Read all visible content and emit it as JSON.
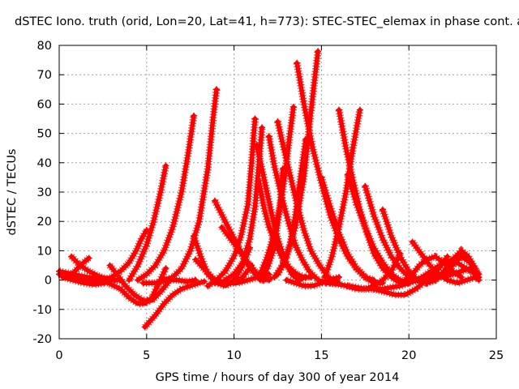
{
  "chart_data": {
    "type": "scatter",
    "title": "dSTEC Iono. truth (orid, Lon=20, Lat=41, h=773): STEC-STEC_elemax in phase cont. a",
    "xlabel": "GPS time / hours of day 300 of year 2014",
    "ylabel": "dSTEC  / TECUs",
    "xlim": [
      0,
      25
    ],
    "ylim": [
      -20,
      80
    ],
    "xticks": [
      "0",
      "5",
      "10",
      "15",
      "20",
      "25"
    ],
    "yticks": [
      "-20",
      "-10",
      "0",
      "10",
      "20",
      "30",
      "40",
      "50",
      "60",
      "70",
      "80"
    ],
    "grid": true,
    "color": "#ff0000",
    "marker": "plus",
    "series": [
      {
        "x": [
          0.0,
          0.5,
          1.0,
          1.5,
          2.0,
          2.5,
          3.0,
          3.5,
          4.0,
          4.4,
          4.7,
          5.0
        ],
        "y": [
          2,
          1,
          0.5,
          0,
          -0.5,
          0,
          1,
          3,
          6,
          10,
          14,
          17
        ]
      },
      {
        "x": [
          0.0,
          0.4,
          0.8,
          1.2,
          1.6,
          2.0,
          2.4,
          2.8,
          3.2
        ],
        "y": [
          3,
          2.5,
          2,
          1.5,
          1,
          0.8,
          0.5,
          0.3,
          0
        ]
      },
      {
        "x": [
          0.7,
          1.2,
          1.7,
          2.2,
          2.7,
          3.1,
          3.5
        ],
        "y": [
          8,
          5,
          3,
          1.5,
          0.5,
          0,
          0
        ]
      },
      {
        "x": [
          0.5,
          0.9,
          1.2,
          1.5,
          1.7
        ],
        "y": [
          1,
          3,
          5,
          6.5,
          7.5
        ]
      },
      {
        "x": [
          0.2,
          0.8,
          1.4,
          2.0,
          2.6,
          3.0
        ],
        "y": [
          1,
          0,
          -1,
          -1.5,
          -1,
          0
        ]
      },
      {
        "x": [
          2.9,
          3.3,
          3.8,
          4.3,
          4.8,
          5.3,
          5.8,
          6.2
        ],
        "y": [
          5,
          2,
          -2,
          -5,
          -7,
          -7,
          -4,
          -1
        ]
      },
      {
        "x": [
          2.0,
          2.8,
          3.5,
          4.0,
          4.5,
          4.9,
          5.3,
          5.7,
          6.1
        ],
        "y": [
          0,
          -1,
          -3,
          -6,
          -8,
          -8,
          -6,
          -1,
          4
        ]
      },
      {
        "x": [
          4.9,
          5.5,
          6.0,
          6.5,
          7.0,
          7.5,
          8.0,
          8.3
        ],
        "y": [
          -16,
          -12,
          -8,
          -5,
          -3,
          -2,
          -1,
          -0.5
        ]
      },
      {
        "x": [
          4.0,
          4.5,
          5.0,
          5.4,
          5.8,
          6.1
        ],
        "y": [
          0,
          5,
          12,
          20,
          30,
          39
        ]
      },
      {
        "x": [
          4.5,
          5.0,
          5.5,
          6.0,
          6.5,
          7.0,
          7.4,
          7.7
        ],
        "y": [
          0,
          2,
          5,
          10,
          18,
          30,
          44,
          56
        ]
      },
      {
        "x": [
          6.0,
          6.5,
          7.0,
          7.5,
          8.0,
          8.5,
          8.8,
          9.0
        ],
        "y": [
          0,
          1,
          4,
          10,
          20,
          38,
          55,
          65
        ]
      },
      {
        "x": [
          4.8,
          5.5,
          6.2,
          6.8,
          7.3,
          7.8
        ],
        "y": [
          -1,
          -1,
          0,
          0,
          -0.5,
          0
        ]
      },
      {
        "x": [
          7.7,
          8.1,
          8.5,
          9.0,
          9.5,
          10.0,
          10.5,
          10.9
        ],
        "y": [
          15,
          8,
          2,
          -1,
          -2,
          0,
          5,
          11
        ]
      },
      {
        "x": [
          7.8,
          8.4,
          8.9,
          9.4,
          9.9,
          10.5,
          11.0
        ],
        "y": [
          7,
          3,
          0,
          -1.5,
          -1,
          1,
          5
        ]
      },
      {
        "x": [
          8.9,
          9.5,
          10.1,
          10.7,
          11.2,
          11.7,
          12.1
        ],
        "y": [
          27,
          20,
          13,
          6,
          2,
          0,
          0.5
        ]
      },
      {
        "x": [
          9.3,
          9.8,
          10.3,
          10.8,
          11.2,
          11.6,
          12.0
        ],
        "y": [
          18,
          14,
          10,
          6,
          3,
          1,
          0
        ]
      },
      {
        "x": [
          8.5,
          9.0,
          9.5,
          10.0,
          10.4,
          10.8,
          11.0,
          11.2
        ],
        "y": [
          -2,
          0,
          3,
          8,
          15,
          26,
          40,
          55
        ]
      },
      {
        "x": [
          9.5,
          10.0,
          10.5,
          10.9,
          11.2,
          11.4,
          11.6
        ],
        "y": [
          0,
          2,
          6,
          14,
          25,
          38,
          52
        ]
      },
      {
        "x": [
          11.3,
          11.7,
          12.1,
          12.5,
          12.9,
          13.3,
          13.7,
          14.1
        ],
        "y": [
          46,
          35,
          24,
          14,
          7,
          2,
          0,
          1
        ]
      },
      {
        "x": [
          11.4,
          11.7,
          12.0,
          12.4,
          12.8,
          13.2,
          13.6,
          14.0,
          14.4
        ],
        "y": [
          34,
          25,
          18,
          12,
          7,
          4,
          2,
          1,
          1
        ]
      },
      {
        "x": [
          12.0,
          12.3,
          12.7,
          13.1,
          13.5,
          13.9,
          14.3,
          14.8,
          15.3,
          15.8
        ],
        "y": [
          49,
          39,
          29,
          20,
          12,
          7,
          3,
          0,
          -1,
          -1
        ]
      },
      {
        "x": [
          12.5,
          12.8,
          13.2,
          13.6,
          14.0,
          14.4,
          14.9,
          15.4,
          16.0
        ],
        "y": [
          54,
          46,
          36,
          26,
          17,
          10,
          5,
          1,
          -1
        ]
      },
      {
        "x": [
          11.5,
          11.9,
          12.3,
          12.7,
          13.0,
          13.2,
          13.4
        ],
        "y": [
          2,
          8,
          16,
          27,
          40,
          50,
          59
        ]
      },
      {
        "x": [
          11.5,
          11.9,
          12.3,
          12.6,
          12.8
        ],
        "y": [
          0,
          4,
          11,
          24,
          38
        ]
      },
      {
        "x": [
          12.3,
          12.8,
          13.2,
          13.5,
          13.8,
          14.1
        ],
        "y": [
          1,
          5,
          12,
          22,
          35,
          48
        ]
      },
      {
        "x": [
          13.6,
          14.0,
          14.5,
          15.0,
          15.5,
          16.0,
          16.5,
          17.0,
          17.5,
          18.0
        ],
        "y": [
          74,
          60,
          45,
          33,
          22,
          14,
          8,
          4,
          1,
          0
        ]
      },
      {
        "x": [
          12.5,
          13.0,
          13.5,
          14.0,
          14.3,
          14.6,
          14.8
        ],
        "y": [
          2,
          8,
          18,
          35,
          52,
          68,
          78
        ]
      },
      {
        "x": [
          15.0,
          15.5,
          16.0,
          16.5,
          17.0,
          17.5,
          18.0,
          18.5
        ],
        "y": [
          35,
          25,
          16,
          9,
          4,
          1,
          -1,
          -1
        ]
      },
      {
        "x": [
          15.2,
          15.6,
          16.0,
          16.4,
          16.8,
          17.2
        ],
        "y": [
          1,
          8,
          18,
          30,
          45,
          58
        ]
      },
      {
        "x": [
          16.0,
          16.4,
          16.8,
          17.2,
          17.6,
          18.0,
          18.5,
          19.0,
          19.5,
          20.0
        ],
        "y": [
          58,
          45,
          34,
          24,
          16,
          9,
          4,
          1,
          -1,
          -1
        ]
      },
      {
        "x": [
          16.5,
          17.0,
          17.5,
          18.0,
          18.5,
          19.0,
          19.5,
          20.0
        ],
        "y": [
          36,
          26,
          18,
          11,
          6,
          2,
          0,
          -1
        ]
      },
      {
        "x": [
          17.5,
          18.0,
          18.5,
          19.0,
          19.5,
          20.0,
          20.5,
          21.0
        ],
        "y": [
          32,
          22,
          14,
          8,
          4,
          1,
          0,
          0
        ]
      },
      {
        "x": [
          16.5,
          17.0,
          17.5,
          18.0,
          18.5,
          19.0,
          19.5
        ],
        "y": [
          -2,
          -3,
          -3,
          -2,
          0,
          3,
          9
        ]
      },
      {
        "x": [
          18.5,
          19.0,
          19.5,
          20.0,
          20.5,
          21.0,
          21.5
        ],
        "y": [
          24,
          15,
          8,
          3,
          0,
          -1,
          0
        ]
      },
      {
        "x": [
          15.5,
          16.5,
          17.5,
          18.5,
          19.5,
          20.5,
          21.5,
          22.5
        ],
        "y": [
          -1,
          -2,
          -3,
          -3,
          -2,
          0,
          1,
          3
        ]
      },
      {
        "x": [
          18.0,
          18.6,
          19.2,
          19.8,
          20.4,
          21.0,
          21.6,
          22.2
        ],
        "y": [
          -3,
          -4,
          -5,
          -5,
          -3,
          0,
          3,
          8
        ]
      },
      {
        "x": [
          19.8,
          20.2,
          20.6,
          21.0,
          21.5,
          22.0,
          22.5,
          23.0
        ],
        "y": [
          0,
          2,
          5,
          7,
          8,
          6,
          3,
          1
        ]
      },
      {
        "x": [
          20.2,
          20.7,
          21.2,
          21.7,
          22.2,
          22.8,
          23.3,
          23.8
        ],
        "y": [
          13,
          9,
          5,
          2,
          0,
          -1,
          0,
          1
        ]
      },
      {
        "x": [
          20.5,
          21.0,
          21.5,
          22.0,
          22.5,
          23.0,
          23.5
        ],
        "y": [
          0,
          2,
          4,
          6,
          7,
          5,
          3
        ]
      },
      {
        "x": [
          21.0,
          21.5,
          22.0,
          22.5,
          23.0,
          23.5,
          24.0
        ],
        "y": [
          -1,
          0,
          2,
          5,
          8,
          6,
          2
        ]
      },
      {
        "x": [
          21.5,
          22.0,
          22.5,
          23.0,
          23.4,
          23.8,
          24.0
        ],
        "y": [
          0,
          3,
          7,
          10,
          8,
          4,
          1
        ]
      },
      {
        "x": [
          22.0,
          22.5,
          23.0,
          23.5,
          24.0
        ],
        "y": [
          1,
          2,
          3,
          4,
          0
        ]
      },
      {
        "x": [
          9.0,
          9.6,
          10.2,
          10.8,
          11.4,
          12.0
        ],
        "y": [
          0,
          -1,
          -1,
          0,
          1,
          2
        ]
      },
      {
        "x": [
          13.0,
          13.5,
          14.0,
          14.5,
          15.0,
          15.5,
          16.0
        ],
        "y": [
          0,
          -1,
          -2,
          -2,
          -1,
          0,
          1
        ]
      }
    ]
  }
}
